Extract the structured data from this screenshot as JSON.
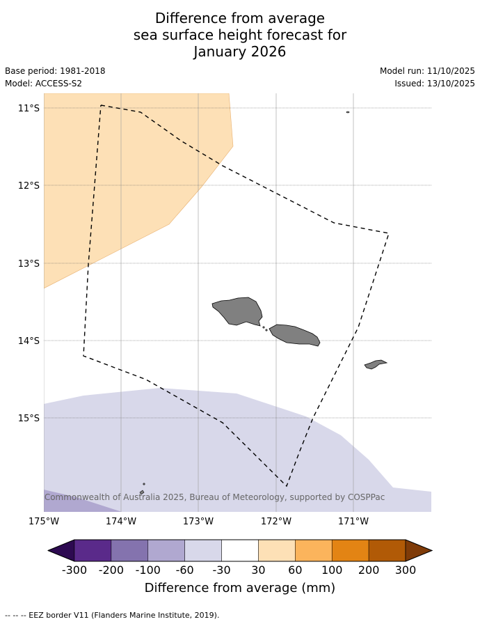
{
  "title": {
    "line1": "Difference from average",
    "line2": "sea surface height forecast for",
    "line3": "January 2026"
  },
  "meta": {
    "base_period": "Base period: 1981-2018",
    "model": "Model: ACCESS-S2",
    "model_run": "Model run: 11/10/2025",
    "issued": "Issued: 13/10/2025"
  },
  "map": {
    "lat_labels": [
      "11°S",
      "12°S",
      "13°S",
      "14°S",
      "15°S"
    ],
    "lon_labels": [
      "175°W",
      "174°W",
      "173°W",
      "172°W",
      "171°W"
    ],
    "copyright": "© Commonwealth of Australia 2025, Bureau of Meteorology, supported by COSPPac",
    "colors": {
      "land": "#808080",
      "positive_30_60": "#fde0b6",
      "negative_60_30": "#d8d8ea",
      "negative_100_60": "#b0a8d0"
    }
  },
  "colorbar": {
    "ticks": [
      "-300",
      "-200",
      "-100",
      "-60",
      "-30",
      "30",
      "60",
      "100",
      "200",
      "300"
    ],
    "colors": [
      "#2d0a51",
      "#5a2a8a",
      "#8473ae",
      "#b0a8d0",
      "#d8d8ea",
      "#ffffff",
      "#fde0b6",
      "#fbb45c",
      "#e38414",
      "#b15a06",
      "#7f3b08"
    ],
    "title": "Difference from average (mm)"
  },
  "footer": "-- -- -- EEZ border V11 (Flanders Marine Institute, 2019)."
}
